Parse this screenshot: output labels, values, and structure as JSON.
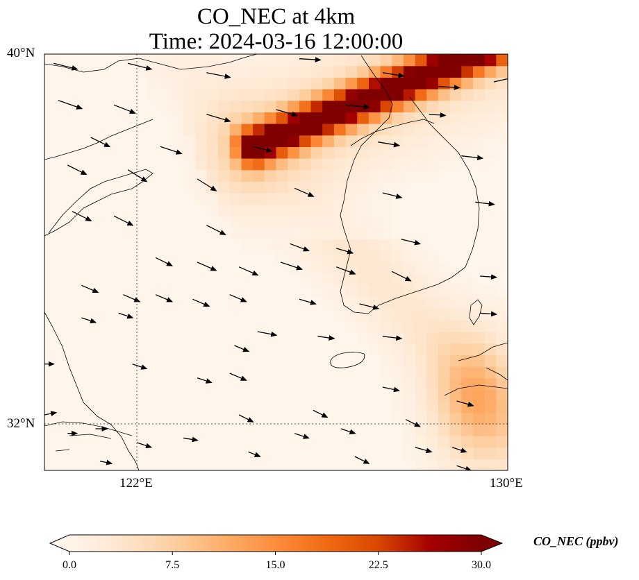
{
  "title": "CO_NEC at 4km",
  "subtitle": "Time: 2024-03-16 12:00:00",
  "map": {
    "extent": {
      "lon": [
        120.0,
        130.0
      ],
      "lat": [
        31.0,
        40.0
      ]
    },
    "gridlines": {
      "lon": [
        122
      ],
      "lat": [
        32
      ]
    },
    "lat_ticks": [
      "40°N",
      "32°N"
    ],
    "lon_ticks": [
      "122°E",
      "130°E"
    ]
  },
  "field": {
    "variable": "CO_NEC",
    "units": "ppbv",
    "vmin": 0.0,
    "vmax": 30.0,
    "plume": {
      "lon_start": 124.5,
      "lat_start": 38.0,
      "lon_end": 130.0,
      "lat_end": 40.3,
      "peak_ppbv": 30.0
    },
    "southeast_band_peak_ppbv": 9.0
  },
  "colorbar": {
    "label": "CO_NEC (ppbv)",
    "ticks": [
      "0.0",
      "7.5",
      "15.0",
      "22.5",
      "30.0"
    ],
    "colors": [
      "#fff5eb",
      "#fee6ce",
      "#fdd0a2",
      "#fdae6b",
      "#fd8d3c",
      "#f16913",
      "#d94801",
      "#a50000",
      "#7f0000"
    ]
  },
  "wind": {
    "vectors": [
      {
        "lon": 120.2,
        "lat": 39.8,
        "u": 1.0,
        "v": -0.25
      },
      {
        "lon": 121.8,
        "lat": 39.8,
        "u": 1.0,
        "v": -0.25
      },
      {
        "lon": 123.5,
        "lat": 39.6,
        "u": 1.0,
        "v": -0.2
      },
      {
        "lon": 125.5,
        "lat": 39.9,
        "u": 0.9,
        "v": -0.05
      },
      {
        "lon": 127.3,
        "lat": 39.6,
        "u": 0.9,
        "v": -0.15
      },
      {
        "lon": 128.5,
        "lat": 39.3,
        "u": 0.9,
        "v": -0.05
      },
      {
        "lon": 129.7,
        "lat": 39.4,
        "u": 0.9,
        "v": 0.2
      },
      {
        "lon": 120.3,
        "lat": 39.0,
        "u": 1.0,
        "v": -0.35
      },
      {
        "lon": 121.5,
        "lat": 38.9,
        "u": 0.9,
        "v": -0.35
      },
      {
        "lon": 123.5,
        "lat": 38.7,
        "u": 1.0,
        "v": -0.3
      },
      {
        "lon": 125.0,
        "lat": 38.8,
        "u": 0.9,
        "v": -0.25
      },
      {
        "lon": 126.5,
        "lat": 38.9,
        "u": 1.0,
        "v": -0.1
      },
      {
        "lon": 128.3,
        "lat": 38.7,
        "u": 0.7,
        "v": -0.05
      },
      {
        "lon": 121.0,
        "lat": 38.2,
        "u": 0.8,
        "v": -0.4
      },
      {
        "lon": 122.5,
        "lat": 38.0,
        "u": 0.9,
        "v": -0.3
      },
      {
        "lon": 124.5,
        "lat": 38.0,
        "u": 0.8,
        "v": -0.2
      },
      {
        "lon": 127.2,
        "lat": 38.1,
        "u": 0.9,
        "v": -0.15
      },
      {
        "lon": 129.0,
        "lat": 37.8,
        "u": 0.9,
        "v": -0.1
      },
      {
        "lon": 120.5,
        "lat": 37.6,
        "u": 0.8,
        "v": -0.4
      },
      {
        "lon": 121.8,
        "lat": 37.5,
        "u": 0.8,
        "v": -0.5
      },
      {
        "lon": 123.3,
        "lat": 37.3,
        "u": 0.8,
        "v": -0.5
      },
      {
        "lon": 125.4,
        "lat": 37.1,
        "u": 0.8,
        "v": -0.35
      },
      {
        "lon": 127.3,
        "lat": 37.0,
        "u": 0.8,
        "v": -0.2
      },
      {
        "lon": 129.3,
        "lat": 36.8,
        "u": 0.8,
        "v": -0.1
      },
      {
        "lon": 120.6,
        "lat": 36.6,
        "u": 0.8,
        "v": -0.4
      },
      {
        "lon": 121.5,
        "lat": 36.5,
        "u": 0.8,
        "v": -0.4
      },
      {
        "lon": 123.5,
        "lat": 36.3,
        "u": 0.8,
        "v": -0.4
      },
      {
        "lon": 125.3,
        "lat": 35.9,
        "u": 0.8,
        "v": -0.3
      },
      {
        "lon": 126.3,
        "lat": 35.8,
        "u": 0.7,
        "v": -0.2
      },
      {
        "lon": 127.7,
        "lat": 36.0,
        "u": 0.8,
        "v": -0.2
      },
      {
        "lon": 122.4,
        "lat": 35.6,
        "u": 0.7,
        "v": -0.35
      },
      {
        "lon": 123.3,
        "lat": 35.5,
        "u": 0.8,
        "v": -0.35
      },
      {
        "lon": 124.2,
        "lat": 35.4,
        "u": 0.8,
        "v": -0.35
      },
      {
        "lon": 125.1,
        "lat": 35.5,
        "u": 0.9,
        "v": -0.3
      },
      {
        "lon": 126.3,
        "lat": 35.4,
        "u": 0.8,
        "v": -0.3
      },
      {
        "lon": 127.5,
        "lat": 35.3,
        "u": 0.8,
        "v": -0.4
      },
      {
        "lon": 129.4,
        "lat": 35.2,
        "u": 0.7,
        "v": -0.05
      },
      {
        "lon": 120.8,
        "lat": 35.0,
        "u": 0.7,
        "v": -0.3
      },
      {
        "lon": 121.7,
        "lat": 34.8,
        "u": 0.7,
        "v": -0.3
      },
      {
        "lon": 122.4,
        "lat": 34.8,
        "u": 0.7,
        "v": -0.3
      },
      {
        "lon": 123.2,
        "lat": 34.7,
        "u": 0.7,
        "v": -0.3
      },
      {
        "lon": 124.0,
        "lat": 34.8,
        "u": 0.7,
        "v": -0.3
      },
      {
        "lon": 125.5,
        "lat": 34.7,
        "u": 0.7,
        "v": -0.2
      },
      {
        "lon": 126.8,
        "lat": 34.6,
        "u": 0.8,
        "v": -0.2
      },
      {
        "lon": 129.4,
        "lat": 34.4,
        "u": 0.7,
        "v": -0.05
      },
      {
        "lon": 120.8,
        "lat": 34.3,
        "u": 0.6,
        "v": -0.2
      },
      {
        "lon": 121.6,
        "lat": 34.4,
        "u": 0.6,
        "v": -0.2
      },
      {
        "lon": 124.6,
        "lat": 34.0,
        "u": 0.8,
        "v": -0.15
      },
      {
        "lon": 125.9,
        "lat": 33.9,
        "u": 0.7,
        "v": -0.1
      },
      {
        "lon": 127.3,
        "lat": 33.9,
        "u": 0.8,
        "v": -0.1
      },
      {
        "lon": 124.1,
        "lat": 33.7,
        "u": 0.6,
        "v": -0.25
      },
      {
        "lon": 120.0,
        "lat": 33.3,
        "u": 0.4,
        "v": 0.0
      },
      {
        "lon": 121.9,
        "lat": 33.3,
        "u": 0.6,
        "v": -0.2
      },
      {
        "lon": 123.3,
        "lat": 33.0,
        "u": 0.6,
        "v": -0.2
      },
      {
        "lon": 124.0,
        "lat": 33.1,
        "u": 0.7,
        "v": -0.3
      },
      {
        "lon": 127.3,
        "lat": 32.8,
        "u": 0.7,
        "v": -0.15
      },
      {
        "lon": 128.9,
        "lat": 32.5,
        "u": 0.7,
        "v": -0.2
      },
      {
        "lon": 124.2,
        "lat": 32.2,
        "u": 0.6,
        "v": -0.3
      },
      {
        "lon": 125.8,
        "lat": 32.3,
        "u": 0.6,
        "v": -0.3
      },
      {
        "lon": 127.8,
        "lat": 32.1,
        "u": 0.6,
        "v": -0.3
      },
      {
        "lon": 120.0,
        "lat": 32.2,
        "u": 0.5,
        "v": 0.1
      },
      {
        "lon": 120.5,
        "lat": 31.8,
        "u": 0.4,
        "v": 0.0
      },
      {
        "lon": 121.1,
        "lat": 31.9,
        "u": 0.5,
        "v": 0.0
      },
      {
        "lon": 122.0,
        "lat": 31.6,
        "u": 0.6,
        "v": -0.2
      },
      {
        "lon": 123.0,
        "lat": 31.7,
        "u": 0.6,
        "v": -0.1
      },
      {
        "lon": 125.4,
        "lat": 31.8,
        "u": 0.6,
        "v": -0.2
      },
      {
        "lon": 126.4,
        "lat": 31.9,
        "u": 0.6,
        "v": -0.2
      },
      {
        "lon": 128.0,
        "lat": 31.5,
        "u": 0.7,
        "v": -0.2
      },
      {
        "lon": 128.8,
        "lat": 31.5,
        "u": 0.6,
        "v": -0.2
      },
      {
        "lon": 124.4,
        "lat": 31.4,
        "u": 0.5,
        "v": -0.2
      },
      {
        "lon": 126.7,
        "lat": 31.3,
        "u": 0.6,
        "v": -0.3
      },
      {
        "lon": 128.9,
        "lat": 31.1,
        "u": 0.6,
        "v": -0.2
      },
      {
        "lon": 121.2,
        "lat": 31.2,
        "u": 0.5,
        "v": -0.1
      }
    ]
  }
}
